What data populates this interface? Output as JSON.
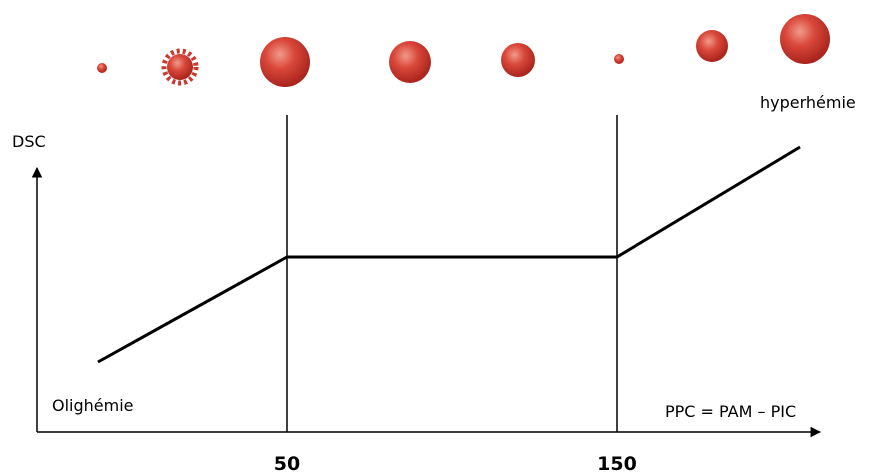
{
  "y_axis_label": "DSC",
  "x_axis_label": "PPC = PAM – PIC",
  "low_label": "Olighémie",
  "high_label": "hyperhémie",
  "ticks": [
    "50",
    "150"
  ]
}
